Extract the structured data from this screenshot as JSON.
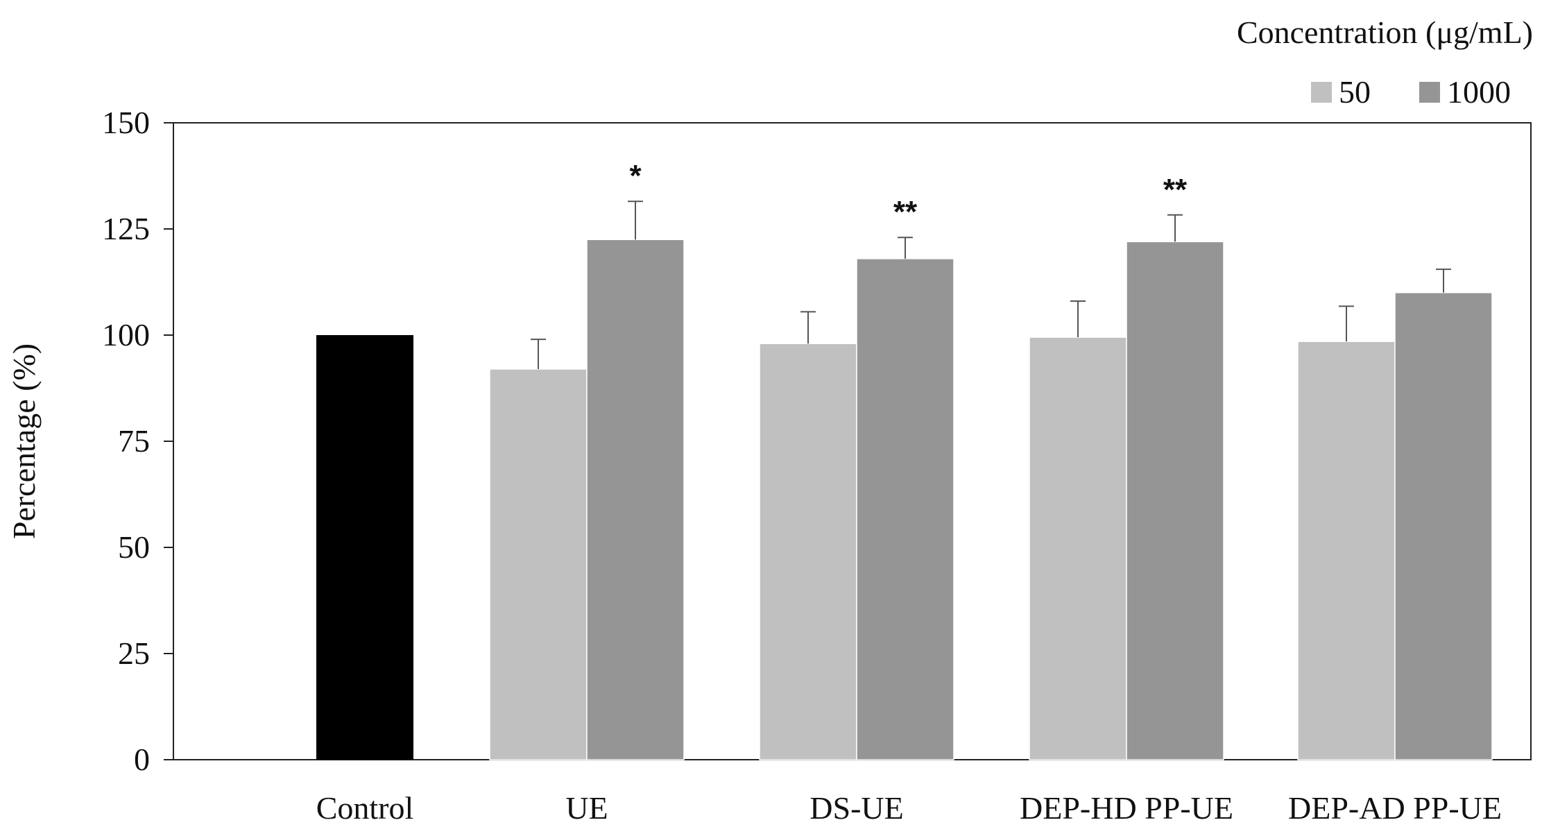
{
  "chart_data": {
    "type": "bar",
    "title": "",
    "xlabel": "",
    "ylabel": "Percentage (%)",
    "ylim": [
      0,
      150
    ],
    "yticks": [
      0,
      25,
      50,
      75,
      100,
      125,
      150
    ],
    "grid": false,
    "legend": {
      "title": "Concentration (μg/mL)",
      "placement": "top-right",
      "entries": [
        {
          "name": "50",
          "color": "#c0c0c0"
        },
        {
          "name": "1000",
          "color": "#959595"
        }
      ]
    },
    "categories": [
      "Control",
      "UE",
      "DS-UE",
      "DEP-HD PP-UE",
      "DEP-AD PP-UE"
    ],
    "control": {
      "value": 100,
      "color": "#000000"
    },
    "series": [
      {
        "name": "50",
        "color": "#c0c0c0",
        "values": [
          null,
          92,
          98,
          99.5,
          98.5
        ],
        "errors": [
          null,
          7,
          7.5,
          8.5,
          8.3
        ],
        "significance": [
          null,
          "",
          "",
          "",
          ""
        ]
      },
      {
        "name": "1000",
        "color": "#959595",
        "values": [
          null,
          122.5,
          118,
          122,
          110
        ],
        "errors": [
          null,
          9,
          5,
          6.3,
          5.5
        ],
        "significance": [
          null,
          "*",
          "**",
          "**",
          ""
        ]
      }
    ]
  }
}
